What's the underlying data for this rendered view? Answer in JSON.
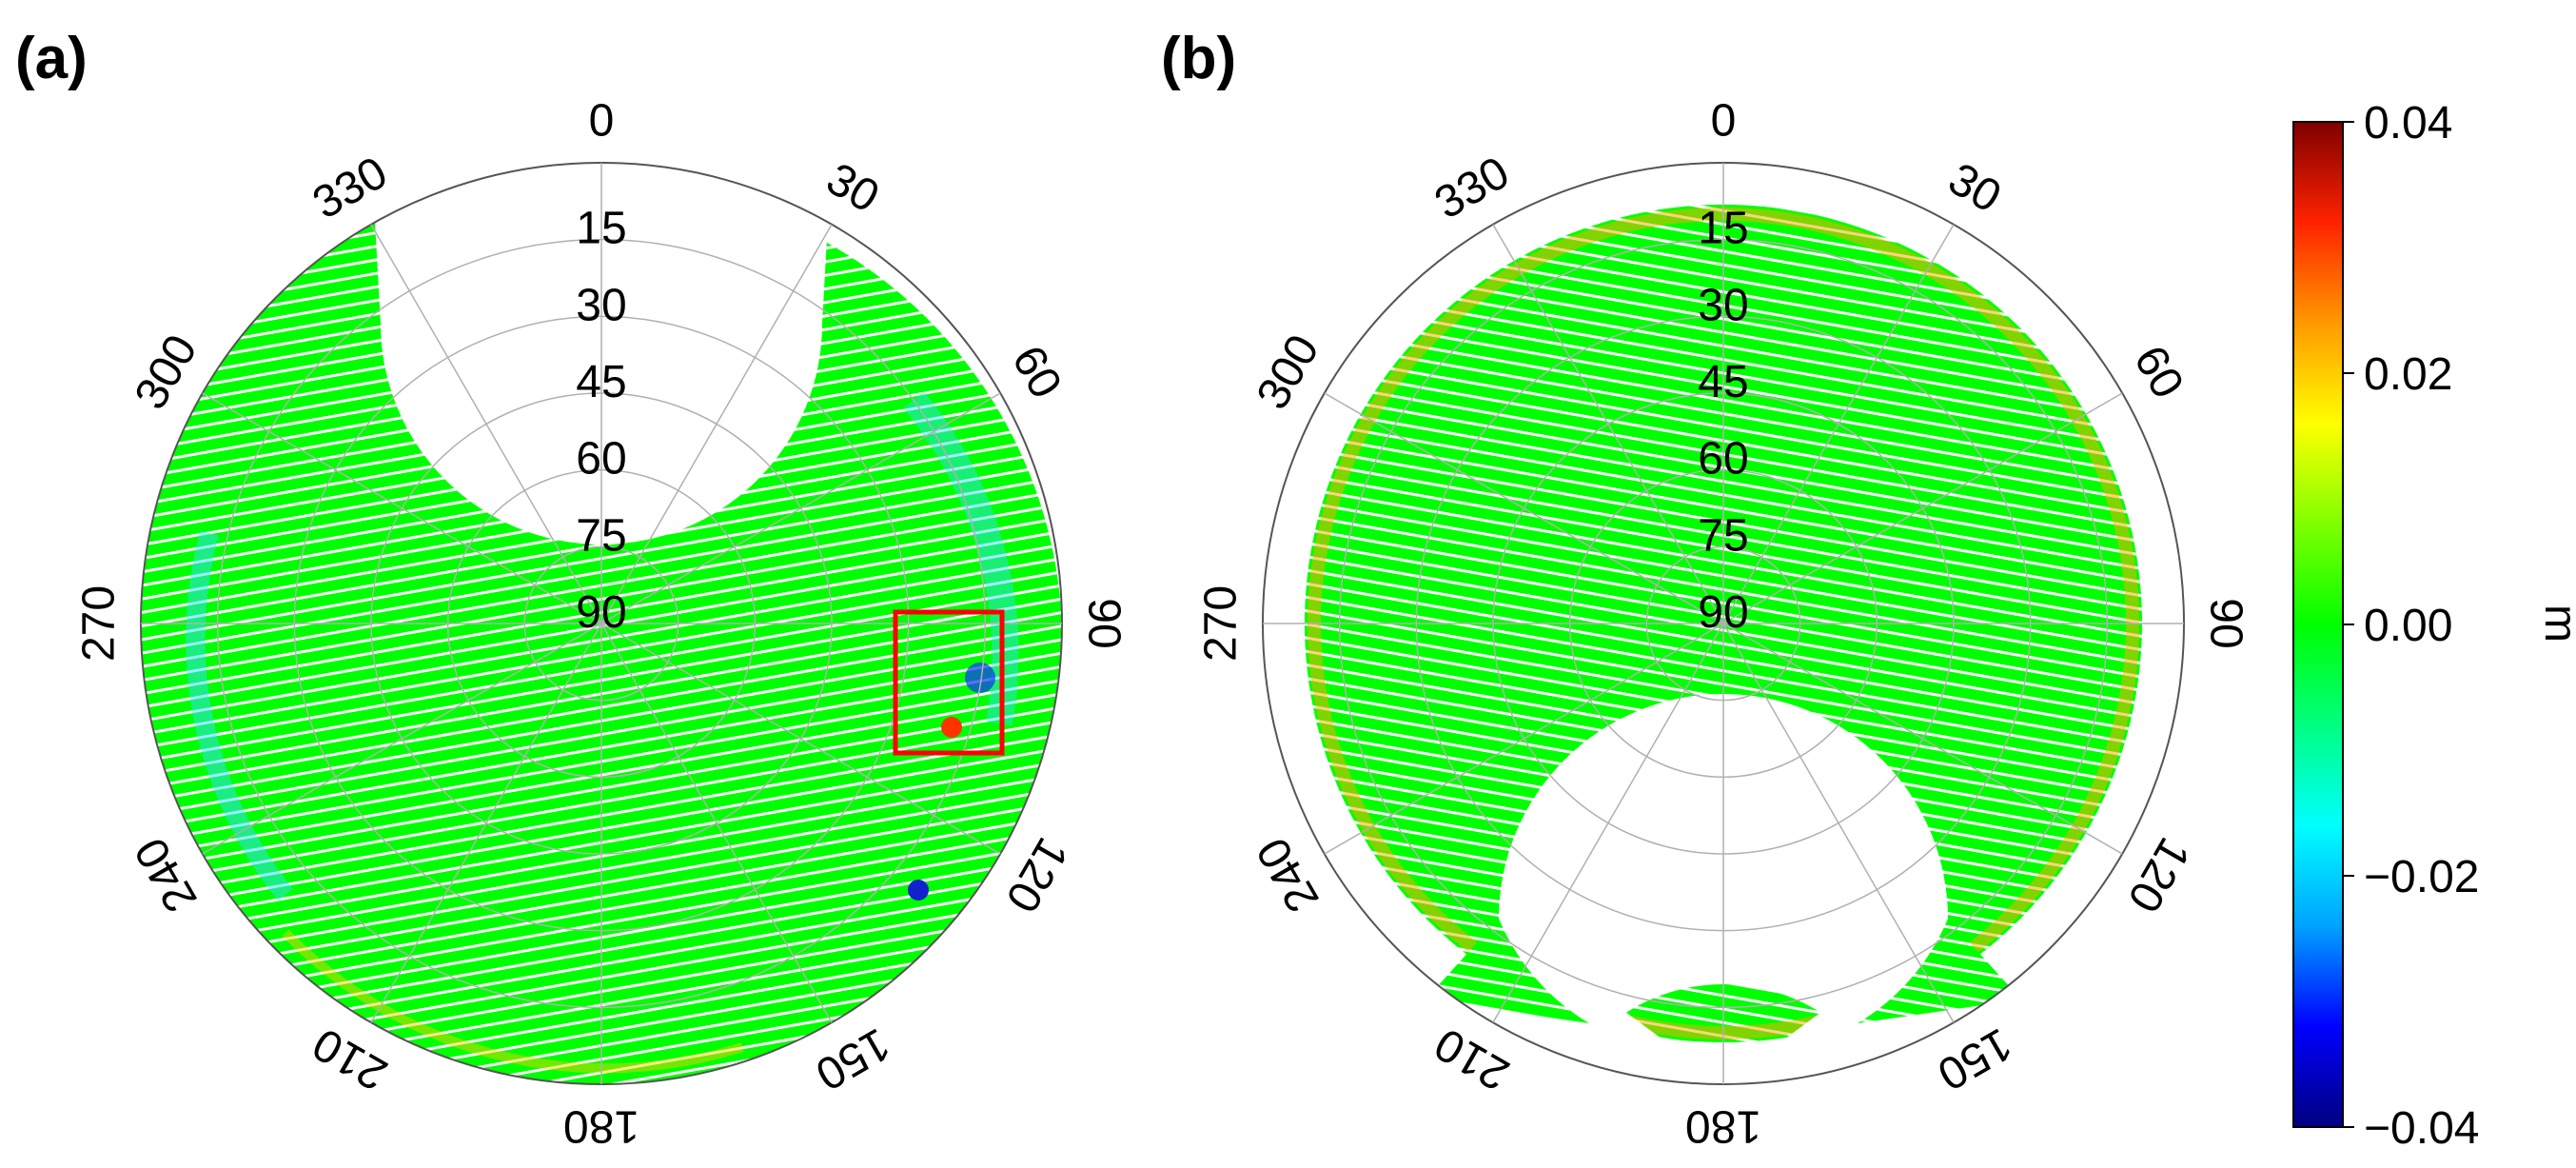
{
  "figure": {
    "panels": [
      "(a)",
      "(b)"
    ],
    "colorbar": {
      "unit": "m",
      "ticks": [
        "0.04",
        "0.02",
        "0.00",
        "−0.02",
        "−0.04"
      ],
      "tick_values": [
        0.04,
        0.02,
        0.0,
        -0.02,
        -0.04
      ],
      "range": [
        -0.04,
        0.04
      ],
      "colormap": [
        "#00007f",
        "#0000ff",
        "#00a2ff",
        "#00ffff",
        "#00ff80",
        "#00ff00",
        "#80ff00",
        "#ffff00",
        "#ff9900",
        "#ff2200",
        "#7f0000"
      ]
    }
  },
  "chart_data": [
    {
      "type": "polar skyplot",
      "panel": "(a)",
      "azimuth_ticks": [
        0,
        30,
        60,
        90,
        120,
        150,
        180,
        210,
        240,
        270,
        300,
        330
      ],
      "elevation_ticks": [
        15,
        30,
        45,
        60,
        75,
        90
      ],
      "elevation_range": [
        90,
        0
      ],
      "azimuth_direction": "clockwise, 0 at top",
      "grid": true,
      "coverage": "all azimuths except a northern gap from about 330 to 30 deg at low elevation",
      "dominant_value": 0.0,
      "highlight_box": {
        "azimuth_range": [
          90,
          115
        ],
        "elevation_range": [
          8,
          20
        ],
        "color": "#ff0000"
      },
      "anomalies": [
        {
          "azimuth": 100,
          "elevation": 12,
          "value": -0.03
        },
        {
          "azimuth": 108,
          "elevation": 14,
          "value": 0.03
        },
        {
          "azimuth": 128,
          "elevation": 6,
          "value": -0.04
        }
      ]
    },
    {
      "type": "polar skyplot",
      "panel": "(b)",
      "azimuth_ticks": [
        0,
        30,
        60,
        90,
        120,
        150,
        180,
        210,
        240,
        270,
        300,
        330
      ],
      "elevation_ticks": [
        15,
        30,
        45,
        60,
        75,
        90
      ],
      "elevation_range": [
        90,
        0
      ],
      "azimuth_direction": "clockwise, 0 at top",
      "grid": true,
      "coverage": "all azimuths except a southern gap from about 150 to 210 deg",
      "dominant_value": 0.0,
      "edge_ring_value": 0.015
    }
  ]
}
